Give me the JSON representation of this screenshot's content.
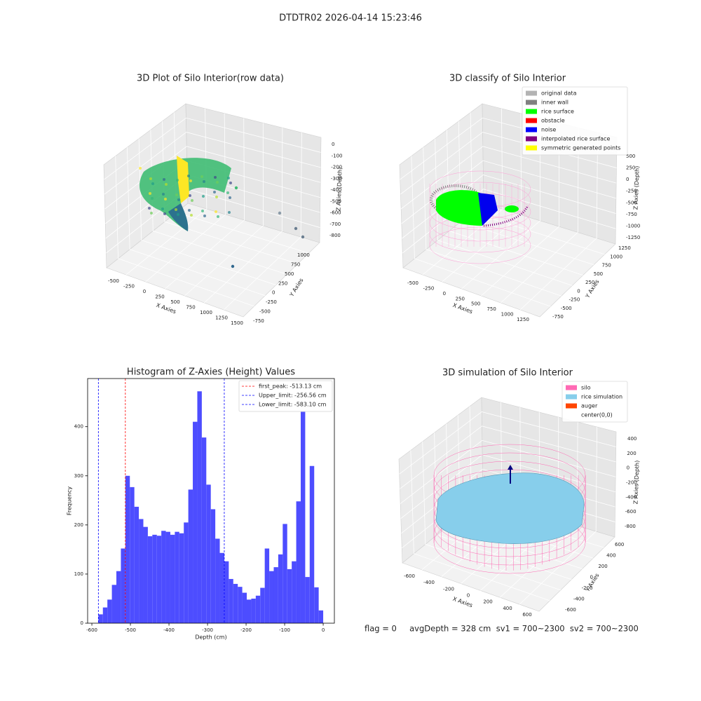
{
  "title": "DTDTR02 2026-04-14 15:23:46",
  "chart_data": [
    {
      "type": "scatter3d",
      "title": "3D Plot of Silo Interior(row data)",
      "xlabel": "X Axies",
      "ylabel": "Y Axies",
      "zlabel": "Z Axies (Depth)",
      "xticks": [
        -500,
        -250,
        0,
        250,
        500,
        750,
        1000,
        1250,
        1500
      ],
      "yticks": [
        -750,
        -500,
        -250,
        0,
        250,
        500,
        750,
        1000
      ],
      "zticks": [
        0,
        -100,
        -200,
        -300,
        -400,
        -500,
        -600,
        -700,
        -800
      ]
    },
    {
      "type": "scatter3d",
      "title": "3D classify of Silo Interior",
      "xlabel": "X Axies",
      "ylabel": "Y Axies",
      "zlabel": "Z Axies (Depth)",
      "xticks": [
        -500,
        -250,
        0,
        250,
        500,
        750,
        1000,
        1250
      ],
      "yticks": [
        -750,
        -500,
        -250,
        0,
        250,
        500,
        750,
        1000,
        1250
      ],
      "zticks": [
        500,
        250,
        0,
        -250,
        -500,
        -750,
        -1000,
        -1250
      ],
      "legend": "upper right",
      "series": [
        {
          "name": "original data",
          "color": "#b3b3b3"
        },
        {
          "name": "inner wall",
          "color": "#808080"
        },
        {
          "name": "rice surface",
          "color": "#00ff00"
        },
        {
          "name": "obstacle",
          "color": "#ff0000"
        },
        {
          "name": "noise",
          "color": "#0000ff"
        },
        {
          "name": "interpolated rice surface",
          "color": "#800080"
        },
        {
          "name": "symmetric generated points",
          "color": "#ffff00"
        }
      ]
    },
    {
      "type": "histogram",
      "title": "Histogram of Z-Axies (Height) Values",
      "xlabel": "Depth (cm)",
      "ylabel": "Frequency",
      "color": "#4d4dff",
      "bins": [
        -583.1,
        -571.44,
        -559.78,
        -548.11,
        -536.45,
        -524.79,
        -513.13,
        -501.47,
        -489.8,
        -478.14,
        -466.48,
        -454.82,
        -443.16,
        -431.49,
        -419.83,
        -408.17,
        -396.51,
        -384.85,
        -373.18,
        -361.52,
        -349.86,
        -338.2,
        -326.54,
        -314.87,
        -303.21,
        -291.55,
        -279.89,
        -268.23,
        -256.56,
        -244.9,
        -233.24,
        -221.58,
        -209.92,
        -198.25,
        -186.59,
        -174.93,
        -163.27,
        -151.61,
        -139.94,
        -128.28,
        -116.62,
        -104.96,
        -93.3,
        -81.63,
        -69.97,
        -58.31,
        -46.65,
        -34.99,
        -23.32,
        -11.66,
        0
      ],
      "values": [
        18,
        32,
        48,
        78,
        106,
        152,
        300,
        277,
        237,
        212,
        196,
        177,
        180,
        178,
        188,
        186,
        180,
        186,
        183,
        205,
        272,
        410,
        472,
        378,
        282,
        232,
        172,
        143,
        126,
        90,
        80,
        74,
        62,
        48,
        50,
        56,
        72,
        152,
        106,
        114,
        140,
        202,
        110,
        126,
        248,
        434,
        94,
        320,
        73,
        26
      ],
      "xlim": [
        -611,
        29
      ],
      "ylim": [
        0,
        498
      ],
      "xticks": [
        -600,
        -500,
        -400,
        -300,
        -200,
        -100,
        0
      ],
      "yticks": [
        0,
        100,
        200,
        300,
        400
      ],
      "legend": "upper right",
      "lines": [
        {
          "name": "first_peak: -513.13 cm",
          "value": -513.13,
          "color": "#ff0000"
        },
        {
          "name": "Upper_limit: -256.56 cm",
          "value": -256.56,
          "color": "#0000ff"
        },
        {
          "name": "Lower_limit: -583.10 cm",
          "value": -583.1,
          "color": "#0000ff"
        }
      ]
    },
    {
      "type": "surface3d",
      "title": "3D simulation of Silo Interior",
      "xlabel": "X Axies",
      "ylabel": "Y Axies",
      "zlabel": "Z Axies (Depth)",
      "xticks": [
        -600,
        -400,
        -200,
        0,
        200,
        400,
        600
      ],
      "yticks": [
        -600,
        -400,
        -200,
        0,
        200,
        400,
        600
      ],
      "zticks": [
        400,
        200,
        0,
        -200,
        -400,
        -600,
        -800
      ],
      "legend": "upper right",
      "series": [
        {
          "name": "silo",
          "color": "#ff69b4"
        },
        {
          "name": "rice simulation",
          "color": "#87ceeb"
        },
        {
          "name": "auger",
          "color": "#ff4500"
        },
        {
          "name": "center(0,0)",
          "color": "#ffffff"
        }
      ]
    }
  ],
  "footer": "flag = 0     avgDepth = 328 cm  sv1 = 700~2300  sv2 = 700~2300"
}
